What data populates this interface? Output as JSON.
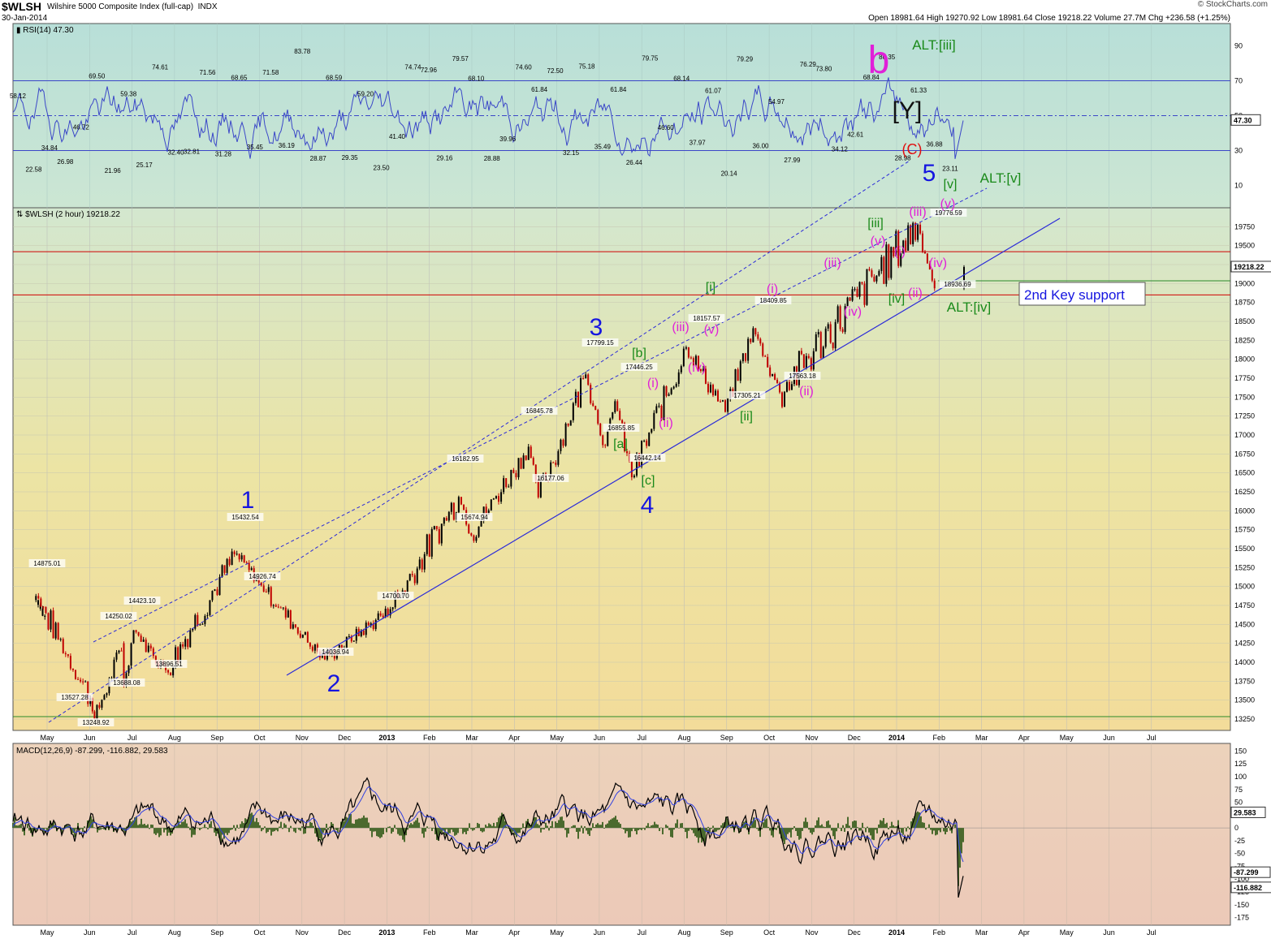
{
  "header": {
    "symbol": "$WLSH",
    "name": "Wilshire 5000 Composite Index (full-cap)",
    "exchange": "INDX",
    "date": "30-Jan-2014",
    "ohlc": "Open 18981.64  High 19270.92  Low 18981.64  Close 19218.22  Volume 27.7M  Chg +236.58 (+1.25%)",
    "brand": "© StockCharts.com"
  },
  "colors": {
    "rsi_bg": "#b7dfd6",
    "price_bg_top": "#d3e7cf",
    "price_bg_bottom": "#f0df9c",
    "macd_bg": "#ecd2bc",
    "rsi_line": "#3b47c8",
    "channel": "#2b2bd8",
    "support": "#d00000",
    "wave_blue": "#1515e0",
    "wave_green": "#1a8a1a",
    "wave_magenta": "#e020d8",
    "wave_red": "#e01010",
    "hist": "#4b6a2e"
  },
  "chart_data": [
    {
      "type": "line",
      "panel": "rsi",
      "legend": "RSI(14) 47.30",
      "current_label": "47.30",
      "ylim": [
        0,
        100
      ],
      "yticks": [
        10,
        30,
        50,
        70,
        90
      ],
      "reference_lines": [
        30,
        50,
        70
      ],
      "labels": [
        "58.12",
        "22.58",
        "34.84",
        "26.98",
        "46.72",
        "69.50",
        "21.96",
        "59.38",
        "25.17",
        "74.61",
        "32.40",
        "32.81",
        "71.56",
        "31.28",
        "68.65",
        "35.45",
        "71.58",
        "36.19",
        "83.78",
        "28.87",
        "68.59",
        "29.35",
        "59.20",
        "23.50",
        "41.40",
        "74.74",
        "72.96",
        "29.16",
        "79.57",
        "68.10",
        "28.88",
        "39.96",
        "74.60",
        "61.84",
        "72.50",
        "32.15",
        "75.18",
        "35.49",
        "61.84",
        "26.44",
        "79.75",
        "46.60",
        "68.14",
        "37.97",
        "61.07",
        "20.14",
        "79.29",
        "36.00",
        "54.97",
        "27.99",
        "76.29",
        "73.80",
        "34.12",
        "42.61",
        "68.84",
        "80.35",
        "28.98",
        "61.33",
        "36.88",
        "23.11"
      ],
      "annotations": [
        "b",
        "ALT:[iii]",
        "[Y]",
        "(C)",
        "5",
        "[v]",
        "ALT:[v]"
      ]
    },
    {
      "type": "candlestick",
      "panel": "price",
      "legend": "$WLSH (2 hour) 19218.22",
      "current_label": "19218.22",
      "ylim": [
        13100,
        20000
      ],
      "yticks": [
        13250,
        13500,
        13750,
        14000,
        14250,
        14500,
        14750,
        15000,
        15250,
        15500,
        15750,
        16000,
        16250,
        16500,
        16750,
        17000,
        17250,
        17500,
        17750,
        18000,
        18250,
        18500,
        18750,
        19000,
        19250,
        19500,
        19750
      ],
      "x_tick_labels": [
        "May",
        "Jun",
        "Jul",
        "Aug",
        "Sep",
        "Oct",
        "Nov",
        "Dec",
        "2013",
        "Feb",
        "Mar",
        "Apr",
        "May",
        "Jun",
        "Jul",
        "Aug",
        "Sep",
        "Oct",
        "Nov",
        "Dec",
        "2014",
        "Feb",
        "Mar",
        "Apr",
        "May",
        "Jun",
        "Jul"
      ],
      "pivots": [
        {
          "x": "2012-04-23",
          "y": 14875.01
        },
        {
          "x": "2012-06-04",
          "y": 13248.92
        },
        {
          "x": "2012-06-01",
          "y": 13527.28
        },
        {
          "x": "2012-06-25",
          "y": 14250.02
        },
        {
          "x": "2012-07-02",
          "y": 14423.1
        },
        {
          "x": "2012-06-25",
          "y": 13688.08
        },
        {
          "x": "2012-07-25",
          "y": 13896.51
        },
        {
          "x": "2012-09-14",
          "y": 15432.54
        },
        {
          "x": "2012-10-05",
          "y": 14926.74
        },
        {
          "x": "2012-11-16",
          "y": 14036.94
        },
        {
          "x": "2013-01-02",
          "y": 14700.7
        },
        {
          "x": "2013-02-20",
          "y": 16182.95
        },
        {
          "x": "2013-03-01",
          "y": 15674.94
        },
        {
          "x": "2013-04-18",
          "y": 16177.06
        },
        {
          "x": "2013-04-11",
          "y": 16845.78
        },
        {
          "x": "2013-05-22",
          "y": 17799.15
        },
        {
          "x": "2013-06-12",
          "y": 17446.25
        },
        {
          "x": "2013-06-05",
          "y": 16855.85
        },
        {
          "x": "2013-06-24",
          "y": 16442.14
        },
        {
          "x": "2013-08-02",
          "y": 18157.57
        },
        {
          "x": "2013-08-30",
          "y": 17305.21
        },
        {
          "x": "2013-09-19",
          "y": 18409.85
        },
        {
          "x": "2013-10-08",
          "y": 17563.18
        },
        {
          "x": "2014-01-15",
          "y": 19776.59
        },
        {
          "x": "2014-01-27",
          "y": 18936.69
        }
      ],
      "wave_labels": [
        "1",
        "2",
        "3",
        "4",
        "5",
        "b",
        "[a]",
        "[b]",
        "[c]",
        "[i]",
        "[ii]",
        "[iii]",
        "[iv]",
        "[v]",
        "(i)",
        "(ii)",
        "(iii)",
        "(iv)",
        "(v)",
        "(C)",
        "[Y]",
        "ALT:[iii]",
        "ALT:[iv]",
        "ALT:[v]"
      ],
      "support_levels": [
        19420,
        18850
      ],
      "support_note": "2nd Key support"
    },
    {
      "type": "line",
      "panel": "macd",
      "legend": "MACD(12,26,9) -87.299, -116.882, 29.583",
      "macd": -87.299,
      "signal": -116.882,
      "histogram": 29.583,
      "current_labels": [
        "29.583",
        "-87.299",
        "-116.882"
      ],
      "ylim": [
        -190,
        165
      ],
      "yticks": [
        -175,
        -150,
        -125,
        -100,
        -75,
        -50,
        -25,
        0,
        25,
        50,
        75,
        100,
        125,
        150
      ]
    }
  ]
}
